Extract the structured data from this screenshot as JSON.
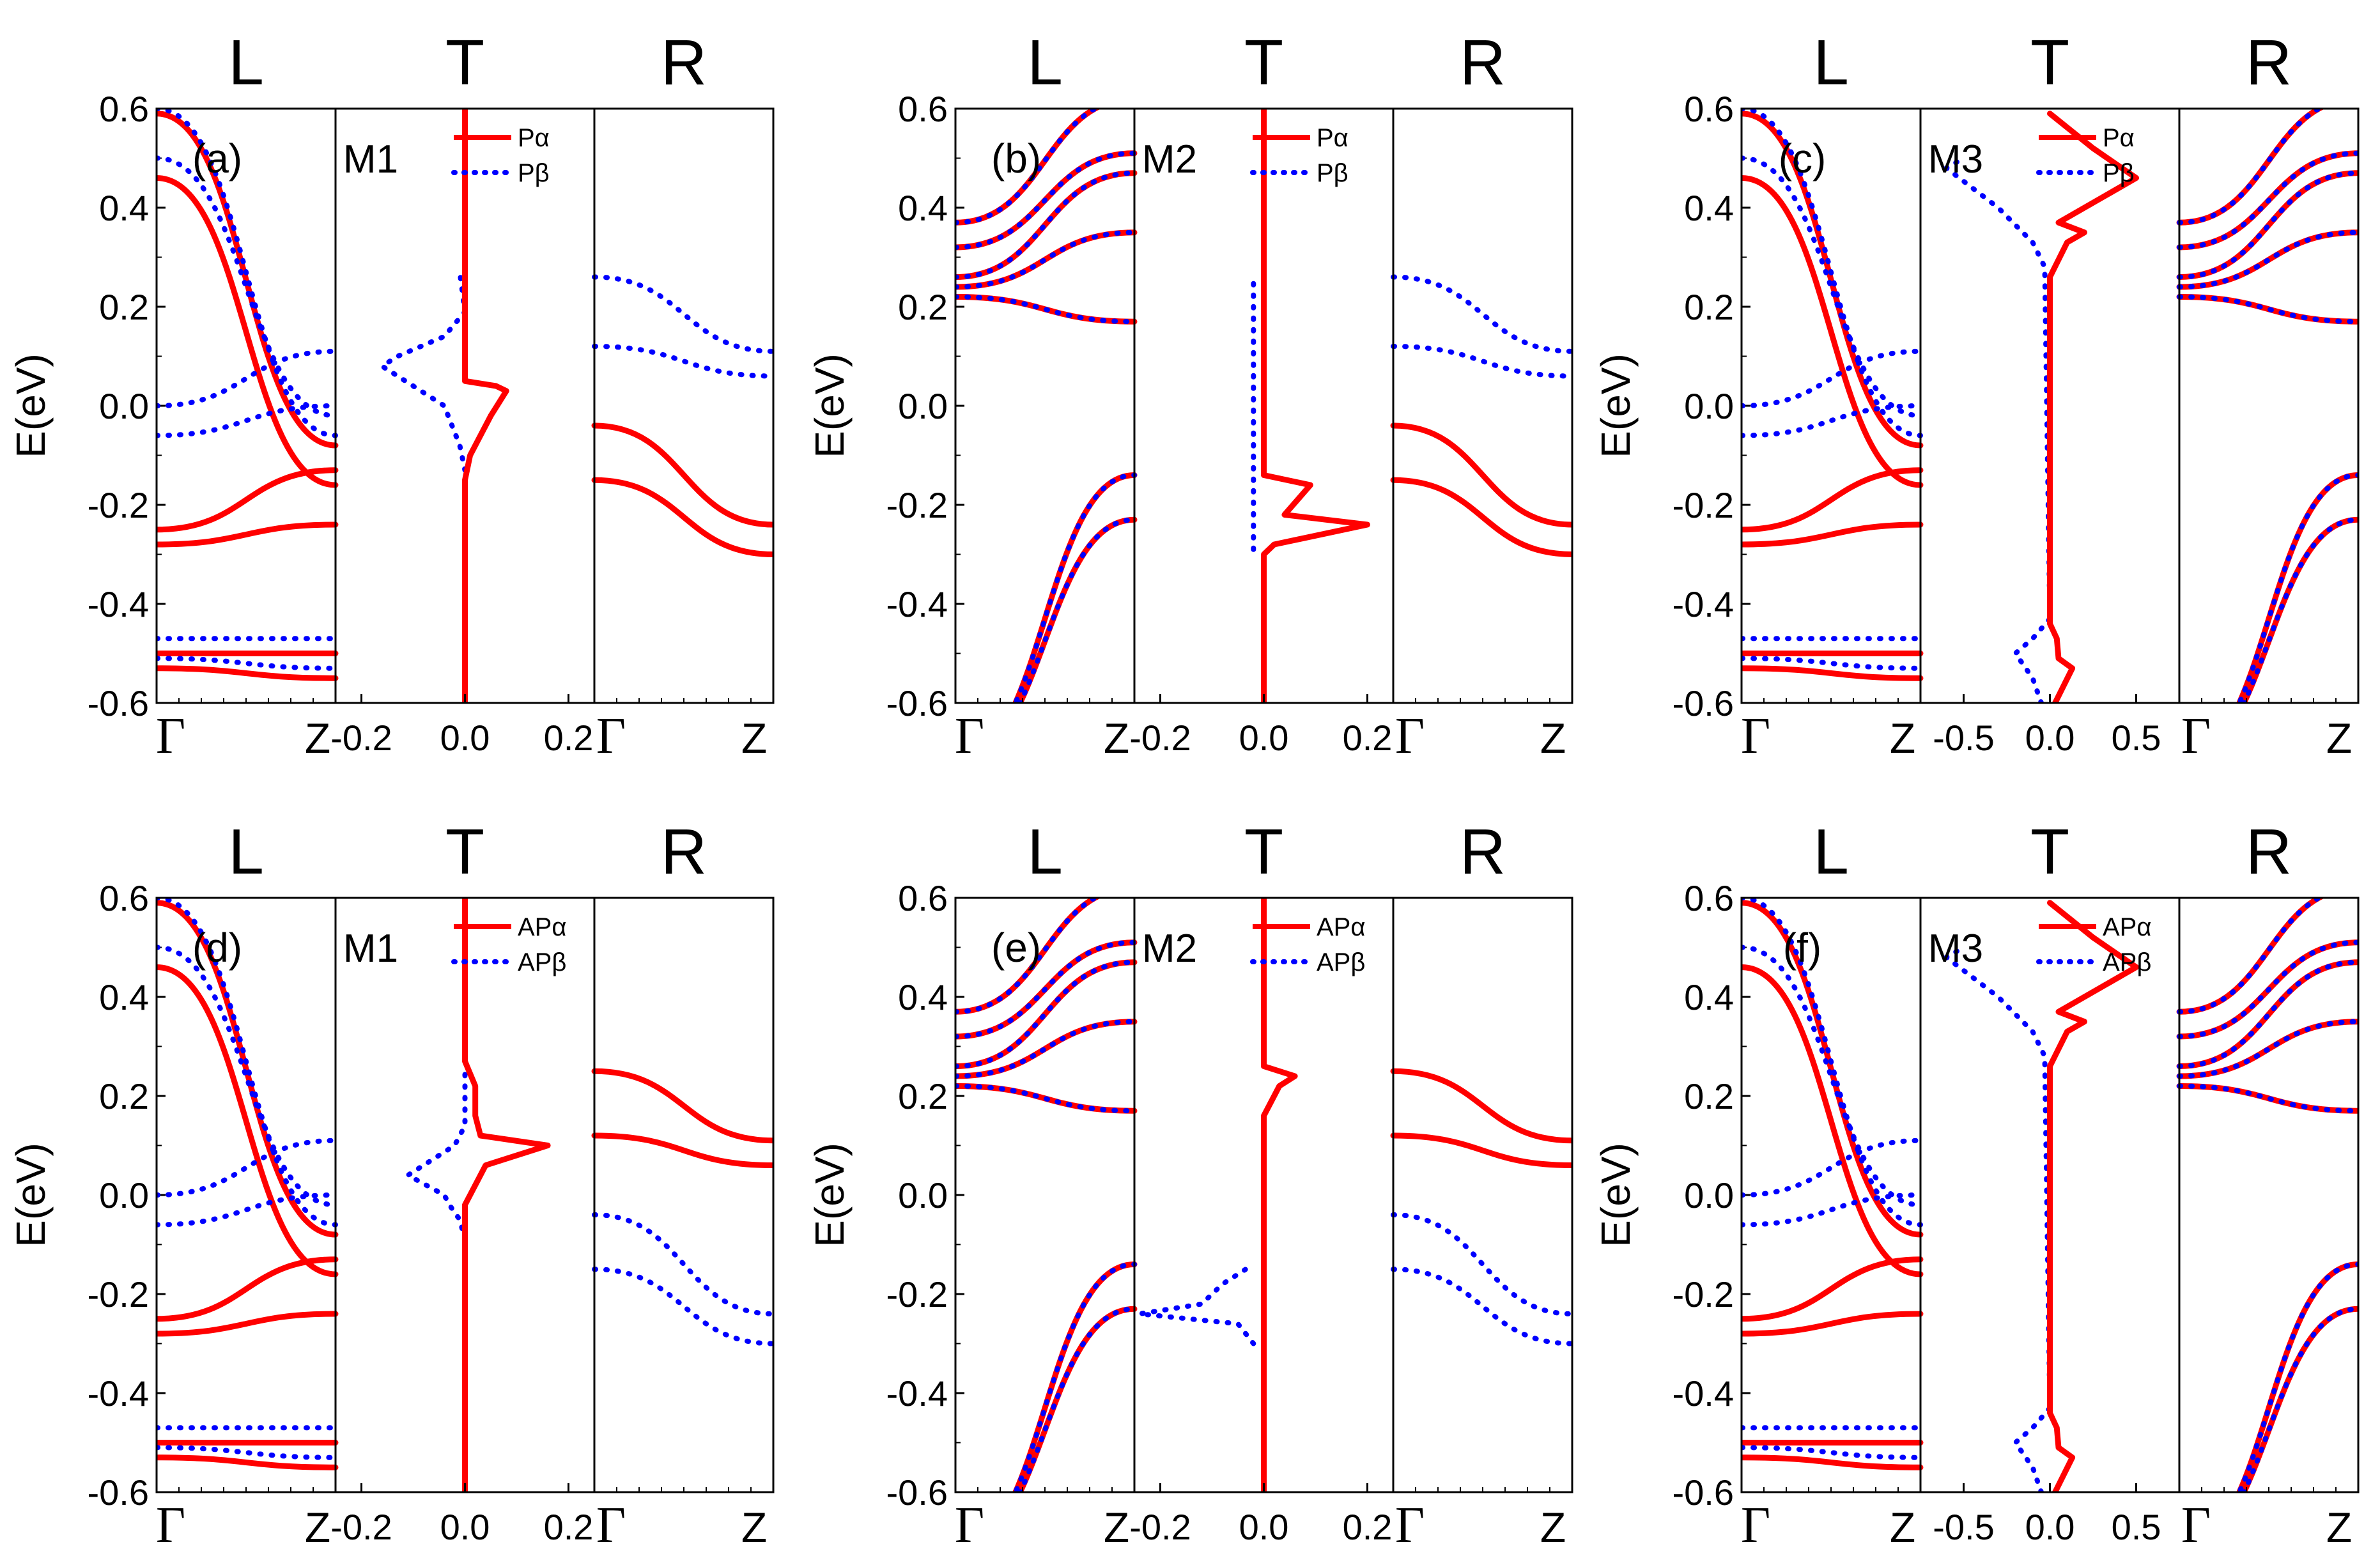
{
  "figure": {
    "layout": "2 rows x 3 columns, each panel = L band + T spectrum + R band",
    "colors": {
      "alpha": "#ff0000",
      "beta": "#0000ff",
      "axis": "#000000",
      "background": "#ffffff"
    },
    "labels": {
      "column_L": "L",
      "column_T": "T",
      "column_R": "R",
      "y_axis": "E(eV)",
      "gamma": "Γ",
      "z": "Z"
    },
    "y_ticks": [
      "0.6",
      "0.4",
      "0.2",
      "0.0",
      "-0.2",
      "-0.4",
      "-0.6"
    ]
  },
  "chart_data": [
    {
      "type": "line",
      "panel": "(a)",
      "model": "M1",
      "legend": [
        "Pα",
        "Pβ"
      ],
      "ylim": [
        -0.6,
        0.6
      ],
      "t_xticks": [
        "-0.2",
        "0.0",
        "0.2"
      ],
      "t_xlim": [
        -0.25,
        0.25
      ],
      "L": {
        "alpha": [
          [
            0.59,
            -0.08
          ],
          [
            0.46,
            -0.16
          ],
          [
            -0.25,
            -0.13
          ],
          [
            -0.28,
            -0.24
          ],
          [
            -0.5,
            -0.5
          ],
          [
            -0.53,
            -0.55
          ]
        ],
        "beta": [
          [
            0.6,
            -0.06
          ],
          [
            0.5,
            -0.02
          ],
          [
            0.0,
            0.11
          ],
          [
            -0.06,
            0.0
          ],
          [
            -0.47,
            -0.47
          ],
          [
            -0.51,
            -0.53
          ]
        ]
      },
      "T": {
        "alpha": [
          [
            -0.6,
            0
          ],
          [
            -0.15,
            0
          ],
          [
            -0.1,
            0.01
          ],
          [
            -0.02,
            0.05
          ],
          [
            0.03,
            0.08
          ],
          [
            0.04,
            0.06
          ],
          [
            0.05,
            0.0
          ],
          [
            0.06,
            0.0
          ],
          [
            0.6,
            0
          ]
        ],
        "beta": [
          [
            -0.13,
            0
          ],
          [
            -0.08,
            -0.01
          ],
          [
            0.0,
            -0.04
          ],
          [
            0.08,
            -0.16
          ],
          [
            0.1,
            -0.13
          ],
          [
            0.14,
            -0.04
          ],
          [
            0.19,
            0.0
          ],
          [
            0.27,
            -0.01
          ]
        ]
      },
      "R": {
        "alpha": [
          [
            -0.04,
            -0.24
          ],
          [
            -0.15,
            -0.3
          ]
        ],
        "beta": [
          [
            0.26,
            0.11
          ],
          [
            0.12,
            0.06
          ]
        ]
      }
    },
    {
      "type": "line",
      "panel": "(b)",
      "model": "M2",
      "legend": [
        "Pα",
        "Pβ"
      ],
      "ylim": [
        -0.6,
        0.6
      ],
      "t_xticks": [
        "-0.2",
        "0.0",
        "0.2"
      ],
      "t_xlim": [
        -0.25,
        0.25
      ],
      "L": {
        "alpha": [
          [
            0.37,
            0.62
          ],
          [
            0.32,
            0.51
          ],
          [
            0.26,
            0.47
          ],
          [
            0.24,
            0.35
          ],
          [
            0.22,
            0.17
          ],
          [
            -0.72,
            -0.14
          ],
          [
            -0.72,
            -0.23
          ]
        ],
        "beta": [
          [
            0.37,
            0.62
          ],
          [
            0.32,
            0.51
          ],
          [
            0.26,
            0.47
          ],
          [
            0.24,
            0.35
          ],
          [
            0.22,
            0.17
          ],
          [
            -0.72,
            -0.14
          ],
          [
            -0.72,
            -0.23
          ]
        ]
      },
      "T": {
        "alpha": [
          [
            -0.6,
            0
          ],
          [
            -0.3,
            0
          ],
          [
            -0.28,
            0.02
          ],
          [
            -0.24,
            0.2
          ],
          [
            -0.22,
            0.04
          ],
          [
            -0.16,
            0.09
          ],
          [
            -0.14,
            0.0
          ],
          [
            0.6,
            0
          ]
        ],
        "beta": [
          [
            -0.29,
            -0.02
          ],
          [
            -0.16,
            -0.02
          ],
          [
            0.2,
            -0.02
          ],
          [
            0.25,
            -0.02
          ]
        ]
      },
      "R": {
        "alpha": [
          [
            -0.04,
            -0.24
          ],
          [
            -0.15,
            -0.3
          ]
        ],
        "beta": [
          [
            0.26,
            0.11
          ],
          [
            0.12,
            0.06
          ]
        ]
      }
    },
    {
      "type": "line",
      "panel": "(c)",
      "model": "M3",
      "legend": [
        "Pα",
        "Pβ"
      ],
      "ylim": [
        -0.6,
        0.6
      ],
      "t_xticks": [
        "-0.5",
        "0.0",
        "0.5"
      ],
      "t_xlim": [
        -0.75,
        0.75
      ],
      "L": {
        "alpha": [
          [
            0.59,
            -0.08
          ],
          [
            0.46,
            -0.16
          ],
          [
            -0.25,
            -0.13
          ],
          [
            -0.28,
            -0.24
          ],
          [
            -0.5,
            -0.5
          ],
          [
            -0.53,
            -0.55
          ]
        ],
        "beta": [
          [
            0.6,
            -0.06
          ],
          [
            0.5,
            -0.02
          ],
          [
            0.0,
            0.11
          ],
          [
            -0.06,
            0.0
          ],
          [
            -0.47,
            -0.47
          ],
          [
            -0.51,
            -0.53
          ]
        ]
      },
      "T": {
        "alpha": [
          [
            -0.6,
            0.03
          ],
          [
            -0.53,
            0.13
          ],
          [
            -0.51,
            0.05
          ],
          [
            -0.47,
            0.04
          ],
          [
            -0.44,
            0.0
          ],
          [
            0.26,
            0.0
          ],
          [
            0.33,
            0.1
          ],
          [
            0.35,
            0.2
          ],
          [
            0.37,
            0.05
          ],
          [
            0.42,
            0.3
          ],
          [
            0.46,
            0.5
          ],
          [
            0.52,
            0.25
          ],
          [
            0.59,
            0.0
          ]
        ],
        "beta": [
          [
            -0.6,
            -0.05
          ],
          [
            -0.55,
            -0.1
          ],
          [
            -0.5,
            -0.2
          ],
          [
            -0.47,
            -0.1
          ],
          [
            -0.43,
            0.0
          ],
          [
            0.28,
            -0.03
          ],
          [
            0.33,
            -0.1
          ],
          [
            0.4,
            -0.3
          ],
          [
            0.48,
            -0.6
          ],
          [
            0.5,
            -0.5
          ]
        ]
      },
      "R": {
        "alpha": [
          [
            0.37,
            0.62
          ],
          [
            0.32,
            0.51
          ],
          [
            0.26,
            0.47
          ],
          [
            0.24,
            0.35
          ],
          [
            0.22,
            0.17
          ],
          [
            -0.72,
            -0.14
          ],
          [
            -0.72,
            -0.23
          ]
        ],
        "beta": [
          [
            0.37,
            0.62
          ],
          [
            0.32,
            0.51
          ],
          [
            0.26,
            0.47
          ],
          [
            0.24,
            0.35
          ],
          [
            0.22,
            0.17
          ],
          [
            -0.72,
            -0.14
          ],
          [
            -0.72,
            -0.23
          ]
        ]
      }
    },
    {
      "type": "line",
      "panel": "(d)",
      "model": "M1",
      "legend": [
        "APα",
        "APβ"
      ],
      "ylim": [
        -0.6,
        0.6
      ],
      "t_xticks": [
        "-0.2",
        "0.0",
        "0.2"
      ],
      "t_xlim": [
        -0.25,
        0.25
      ],
      "L": {
        "alpha": [
          [
            0.59,
            -0.08
          ],
          [
            0.46,
            -0.16
          ],
          [
            -0.25,
            -0.13
          ],
          [
            -0.28,
            -0.24
          ],
          [
            -0.5,
            -0.5
          ],
          [
            -0.53,
            -0.55
          ]
        ],
        "beta": [
          [
            0.6,
            -0.06
          ],
          [
            0.5,
            -0.02
          ],
          [
            0.0,
            0.11
          ],
          [
            -0.06,
            0.0
          ],
          [
            -0.47,
            -0.47
          ],
          [
            -0.51,
            -0.53
          ]
        ]
      },
      "T": {
        "alpha": [
          [
            -0.6,
            0
          ],
          [
            -0.02,
            0
          ],
          [
            0.0,
            0.01
          ],
          [
            0.06,
            0.04
          ],
          [
            0.1,
            0.16
          ],
          [
            0.12,
            0.03
          ],
          [
            0.16,
            0.02
          ],
          [
            0.22,
            0.02
          ],
          [
            0.27,
            0.0
          ],
          [
            0.6,
            0
          ]
        ],
        "beta": [
          [
            -0.09,
            0
          ],
          [
            -0.05,
            -0.01
          ],
          [
            -0.02,
            -0.03
          ],
          [
            0.0,
            -0.04
          ],
          [
            0.04,
            -0.11
          ],
          [
            0.1,
            -0.02
          ],
          [
            0.14,
            0.0
          ],
          [
            0.2,
            0.0
          ],
          [
            0.25,
            0.0
          ]
        ]
      },
      "R": {
        "alpha": [
          [
            0.25,
            0.11
          ],
          [
            0.12,
            0.06
          ]
        ],
        "beta": [
          [
            -0.04,
            -0.24
          ],
          [
            -0.15,
            -0.3
          ]
        ]
      }
    },
    {
      "type": "line",
      "panel": "(e)",
      "model": "M2",
      "legend": [
        "APα",
        "APβ"
      ],
      "ylim": [
        -0.6,
        0.6
      ],
      "t_xticks": [
        "-0.2",
        "0.0",
        "0.2"
      ],
      "t_xlim": [
        -0.25,
        0.25
      ],
      "L": {
        "alpha": [
          [
            0.37,
            0.62
          ],
          [
            0.32,
            0.51
          ],
          [
            0.26,
            0.47
          ],
          [
            0.24,
            0.35
          ],
          [
            0.22,
            0.17
          ],
          [
            -0.72,
            -0.14
          ],
          [
            -0.72,
            -0.23
          ]
        ],
        "beta": [
          [
            0.37,
            0.62
          ],
          [
            0.32,
            0.51
          ],
          [
            0.26,
            0.47
          ],
          [
            0.24,
            0.35
          ],
          [
            0.22,
            0.17
          ],
          [
            -0.72,
            -0.14
          ],
          [
            -0.72,
            -0.23
          ]
        ]
      },
      "T": {
        "alpha": [
          [
            -0.6,
            0
          ],
          [
            0.16,
            0
          ],
          [
            0.18,
            0.01
          ],
          [
            0.22,
            0.03
          ],
          [
            0.24,
            0.06
          ],
          [
            0.26,
            0.0
          ],
          [
            0.6,
            0
          ]
        ],
        "beta": [
          [
            -0.3,
            -0.02
          ],
          [
            -0.26,
            -0.05
          ],
          [
            -0.24,
            -0.24
          ],
          [
            -0.22,
            -0.12
          ],
          [
            -0.18,
            -0.08
          ],
          [
            -0.14,
            -0.02
          ]
        ]
      },
      "R": {
        "alpha": [
          [
            0.25,
            0.11
          ],
          [
            0.12,
            0.06
          ]
        ],
        "beta": [
          [
            -0.04,
            -0.24
          ],
          [
            -0.15,
            -0.3
          ]
        ]
      }
    },
    {
      "type": "line",
      "panel": "(f)",
      "model": "M3",
      "legend": [
        "APα",
        "APβ"
      ],
      "ylim": [
        -0.6,
        0.6
      ],
      "t_xticks": [
        "-0.5",
        "0.0",
        "0.5"
      ],
      "t_xlim": [
        -0.75,
        0.75
      ],
      "L": {
        "alpha": [
          [
            0.59,
            -0.08
          ],
          [
            0.46,
            -0.16
          ],
          [
            -0.25,
            -0.13
          ],
          [
            -0.28,
            -0.24
          ],
          [
            -0.5,
            -0.5
          ],
          [
            -0.53,
            -0.55
          ]
        ],
        "beta": [
          [
            0.6,
            -0.06
          ],
          [
            0.5,
            -0.02
          ],
          [
            0.0,
            0.11
          ],
          [
            -0.06,
            0.0
          ],
          [
            -0.47,
            -0.47
          ],
          [
            -0.51,
            -0.53
          ]
        ]
      },
      "T": {
        "alpha": [
          [
            -0.6,
            0.03
          ],
          [
            -0.53,
            0.13
          ],
          [
            -0.51,
            0.05
          ],
          [
            -0.47,
            0.04
          ],
          [
            -0.44,
            0.0
          ],
          [
            0.26,
            0.0
          ],
          [
            0.33,
            0.1
          ],
          [
            0.35,
            0.2
          ],
          [
            0.37,
            0.05
          ],
          [
            0.42,
            0.3
          ],
          [
            0.46,
            0.5
          ],
          [
            0.52,
            0.25
          ],
          [
            0.59,
            0.0
          ]
        ],
        "beta": [
          [
            -0.6,
            -0.05
          ],
          [
            -0.55,
            -0.1
          ],
          [
            -0.5,
            -0.2
          ],
          [
            -0.47,
            -0.1
          ],
          [
            -0.43,
            0.0
          ],
          [
            0.28,
            -0.03
          ],
          [
            0.33,
            -0.1
          ],
          [
            0.4,
            -0.3
          ],
          [
            0.48,
            -0.6
          ],
          [
            0.5,
            -0.5
          ]
        ]
      },
      "R": {
        "alpha": [
          [
            0.37,
            0.62
          ],
          [
            0.32,
            0.51
          ],
          [
            0.26,
            0.47
          ],
          [
            0.24,
            0.35
          ],
          [
            0.22,
            0.17
          ],
          [
            -0.72,
            -0.14
          ],
          [
            -0.72,
            -0.23
          ]
        ],
        "beta": [
          [
            0.37,
            0.62
          ],
          [
            0.32,
            0.51
          ],
          [
            0.26,
            0.47
          ],
          [
            0.24,
            0.35
          ],
          [
            0.22,
            0.17
          ],
          [
            -0.72,
            -0.14
          ],
          [
            -0.72,
            -0.23
          ]
        ]
      }
    }
  ]
}
